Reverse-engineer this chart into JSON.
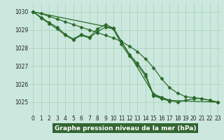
{
  "x": [
    0,
    1,
    2,
    3,
    4,
    5,
    6,
    7,
    8,
    9,
    10,
    11,
    12,
    13,
    14,
    15,
    16,
    17,
    18,
    19,
    20,
    21,
    22,
    23
  ],
  "series": [
    [
      1030.0,
      1029.9,
      1029.75,
      1029.6,
      1029.45,
      1029.3,
      1029.15,
      1029.0,
      1028.85,
      1028.7,
      1028.55,
      1028.35,
      1028.1,
      1027.8,
      1027.4,
      1026.9,
      1026.3,
      1025.8,
      1025.5,
      1025.3,
      1025.25,
      1025.2,
      1025.1,
      1025.0
    ],
    [
      1030.0,
      1029.7,
      1029.4,
      1029.15,
      1028.75,
      1028.5,
      1028.75,
      1028.6,
      1029.05,
      1029.3,
      1029.1,
      1028.35,
      1027.65,
      1027.15,
      1026.55,
      1025.4,
      1025.25,
      1025.1,
      1025.0,
      1025.1,
      1025.2,
      1025.2,
      1025.1,
      1025.0
    ],
    [
      1030.0,
      1029.65,
      1029.35,
      1029.05,
      1028.7,
      1028.45,
      1028.7,
      1028.55,
      1028.9,
      1029.15,
      1029.05,
      1028.2,
      1027.55,
      1027.05,
      1026.45,
      1025.35,
      1025.2,
      1025.05,
      null,
      null,
      null,
      null,
      null,
      null
    ],
    [
      1030.0,
      null,
      null,
      null,
      null,
      null,
      null,
      null,
      null,
      null,
      1029.1,
      null,
      null,
      null,
      null,
      1025.45,
      null,
      1025.1,
      null,
      null,
      null,
      null,
      null,
      1025.0
    ]
  ],
  "line_color": "#2a6a2a",
  "marker": "D",
  "markersize": 2.5,
  "linewidth": 0.9,
  "bg_color": "#cce8de",
  "grid_color": "#99ccaa",
  "ylabel_ticks": [
    1025,
    1026,
    1027,
    1028,
    1029,
    1030
  ],
  "xlabel_ticks": [
    0,
    1,
    2,
    3,
    4,
    5,
    6,
    7,
    8,
    9,
    10,
    11,
    12,
    13,
    14,
    15,
    16,
    17,
    18,
    19,
    20,
    21,
    22,
    23
  ],
  "ylim": [
    1024.3,
    1030.5
  ],
  "xlim": [
    -0.5,
    23.5
  ],
  "xlabel": "Graphe pression niveau de la mer (hPa)",
  "xlabel_bg": "#336633",
  "tick_fontsize": 5.5,
  "xlabel_fontsize": 6.5
}
